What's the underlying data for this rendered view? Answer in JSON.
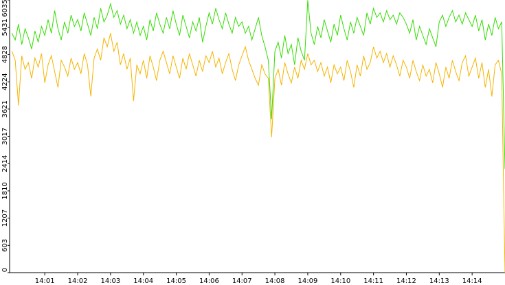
{
  "chart_data": {
    "type": "line",
    "x": [
      0,
      0.1,
      0.2,
      0.3,
      0.4,
      0.5,
      0.6,
      0.7,
      0.8,
      0.9,
      1,
      1.1,
      1.2,
      1.3,
      1.4,
      1.5,
      1.6,
      1.7,
      1.8,
      1.9,
      2,
      2.1,
      2.2,
      2.3,
      2.4,
      2.5,
      2.6,
      2.7,
      2.8,
      2.9,
      3,
      3.1,
      3.2,
      3.3,
      3.4,
      3.5,
      3.6,
      3.7,
      3.8,
      3.9,
      4,
      4.1,
      4.2,
      4.3,
      4.4,
      4.5,
      4.6,
      4.7,
      4.8,
      4.9,
      5,
      5.1,
      5.2,
      5.3,
      5.4,
      5.5,
      5.6,
      5.7,
      5.8,
      5.9,
      6,
      6.1,
      6.2,
      6.3,
      6.4,
      6.5,
      6.6,
      6.7,
      6.8,
      6.9,
      7,
      7.1,
      7.2,
      7.3,
      7.4,
      7.5,
      7.6,
      7.7,
      7.8,
      7.9,
      8,
      8.1,
      8.2,
      8.3,
      8.4,
      8.5,
      8.6,
      8.7,
      8.8,
      8.9,
      9,
      9.1,
      9.2,
      9.3,
      9.4,
      9.5,
      9.6,
      9.7,
      9.8,
      9.9,
      10,
      10.1,
      10.2,
      10.3,
      10.4,
      10.5,
      10.6,
      10.7,
      10.8,
      10.9,
      11,
      11.1,
      11.2,
      11.3,
      11.4,
      11.5,
      11.6,
      11.7,
      11.8,
      11.9,
      12,
      12.1,
      12.2,
      12.3,
      12.4,
      12.5,
      12.6,
      12.7,
      12.8,
      12.9,
      13,
      13.1,
      13.2,
      13.3,
      13.4,
      13.5,
      13.6,
      13.7,
      13.8,
      13.9,
      14,
      14.1,
      14.2,
      14.3,
      14.4,
      14.5,
      14.6,
      14.7,
      14.8,
      14.9,
      15
    ],
    "series": [
      {
        "color": "#33dd00",
        "values": [
          5300,
          5150,
          5500,
          5050,
          5400,
          5200,
          4950,
          5350,
          5100,
          5450,
          5250,
          5600,
          5300,
          5800,
          5400,
          5150,
          5550,
          5300,
          5700,
          5450,
          5600,
          5350,
          5750,
          5500,
          5250,
          5650,
          5400,
          5850,
          5550,
          5700,
          5950,
          5650,
          5800,
          5500,
          5700,
          5400,
          5600,
          5300,
          5550,
          5250,
          5450,
          5150,
          5600,
          5350,
          5750,
          5500,
          5300,
          5650,
          5400,
          5800,
          5500,
          5250,
          5700,
          5450,
          5200,
          5550,
          5350,
          5650,
          5100,
          5450,
          5750,
          5500,
          5850,
          5600,
          5400,
          5750,
          5500,
          5300,
          5650,
          5450,
          5550,
          5300,
          5450,
          5150,
          5400,
          5650,
          5250,
          5000,
          4700,
          3400,
          4900,
          5100,
          4750,
          5250,
          4850,
          5050,
          4600,
          5200,
          4900,
          4700,
          6030,
          5300,
          5050,
          5450,
          5200,
          5600,
          5350,
          5100,
          5500,
          5250,
          5700,
          5400,
          5150,
          5550,
          5300,
          5650,
          5450,
          5250,
          5750,
          5500,
          5850,
          5650,
          5750,
          5550,
          5800,
          5600,
          5700,
          5500,
          5750,
          5650,
          5500,
          5300,
          5600,
          5150,
          5450,
          5250,
          5050,
          5400,
          5200,
          5000,
          5550,
          5700,
          5450,
          5650,
          5800,
          5550,
          5700,
          5500,
          5750,
          5600,
          5450,
          5700,
          5350,
          5600,
          5150,
          5500,
          5250,
          5650,
          5400,
          5550,
          2300
        ]
      },
      {
        "color": "#f5b400",
        "values": [
          4900,
          4700,
          3700,
          4800,
          4500,
          4650,
          4300,
          4750,
          4550,
          4850,
          4200,
          4600,
          4800,
          4450,
          4100,
          4700,
          4550,
          4350,
          4750,
          4500,
          4650,
          4400,
          4850,
          4600,
          3900,
          4750,
          4950,
          4700,
          5200,
          5000,
          5300,
          4900,
          5100,
          4600,
          4850,
          4500,
          4750,
          3800,
          4600,
          4400,
          4700,
          4300,
          4800,
          4550,
          4250,
          4700,
          4900,
          4650,
          4400,
          4800,
          4550,
          4300,
          4750,
          4500,
          4850,
          4600,
          4350,
          4700,
          4450,
          4800,
          4650,
          4900,
          4550,
          4750,
          4400,
          4650,
          4850,
          4500,
          4250,
          4600,
          4800,
          5000,
          4700,
          4500,
          4300,
          4150,
          4600,
          4400,
          4300,
          3000,
          4300,
          4500,
          4150,
          4650,
          4400,
          4200,
          4550,
          4300,
          4700,
          4500,
          4850,
          4600,
          4700,
          4450,
          4650,
          4350,
          4550,
          4200,
          4600,
          4400,
          4550,
          4250,
          4700,
          4450,
          4100,
          4600,
          4350,
          4800,
          4500,
          4650,
          5000,
          4750,
          4900,
          4650,
          4850,
          4550,
          4800,
          4600,
          4350,
          4700,
          4550,
          4300,
          4700,
          4450,
          4250,
          4600,
          4350,
          4500,
          4200,
          4650,
          4400,
          4100,
          4550,
          4300,
          4700,
          4450,
          4250,
          4650,
          4800,
          4350,
          4550,
          4750,
          4300,
          4650,
          4100,
          4500,
          3900,
          4600,
          4700,
          4400,
          0
        ]
      }
    ],
    "xlim": [
      -0.07,
      15
    ],
    "xticks": [
      {
        "value": 1,
        "label": "14:01"
      },
      {
        "value": 2,
        "label": "14:02"
      },
      {
        "value": 3,
        "label": "14:03"
      },
      {
        "value": 4,
        "label": "14:04"
      },
      {
        "value": 5,
        "label": "14:05"
      },
      {
        "value": 6,
        "label": "14:06"
      },
      {
        "value": 7,
        "label": "14:07"
      },
      {
        "value": 8,
        "label": "14:08"
      },
      {
        "value": 9,
        "label": "14:09"
      },
      {
        "value": 10,
        "label": "14:10"
      },
      {
        "value": 11,
        "label": "14:11"
      },
      {
        "value": 12,
        "label": "14:12"
      },
      {
        "value": 13,
        "label": "14:13"
      },
      {
        "value": 14,
        "label": "14:14"
      }
    ],
    "ylim": [
      0,
      6035
    ],
    "yticks": [
      0,
      603,
      1207,
      1810,
      2414,
      3017,
      3621,
      4224,
      4828,
      5431,
      6035
    ],
    "grid": false
  }
}
